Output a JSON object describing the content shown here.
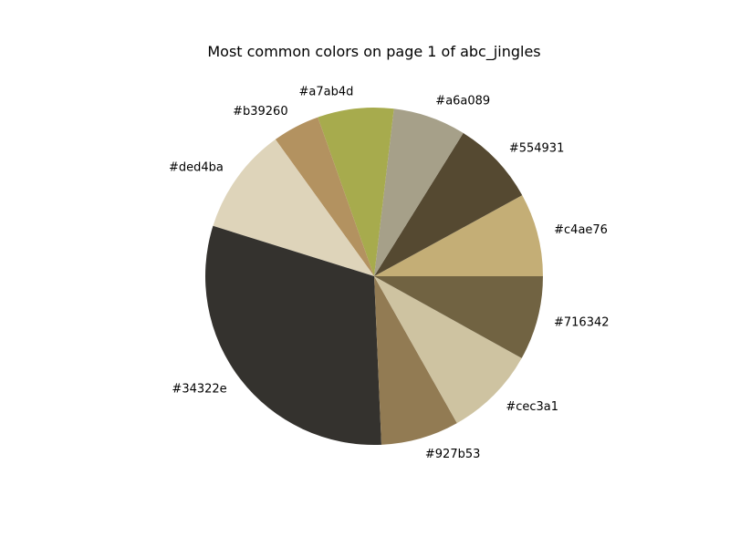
{
  "chart_data": {
    "type": "pie",
    "title": "Most common colors on page 1 of abc_jingles",
    "slices": [
      {
        "label": "#c4ae76",
        "value": 8.1,
        "color": "#c4ae76"
      },
      {
        "label": "#554931",
        "value": 8.3,
        "color": "#554931"
      },
      {
        "label": "#a6a089",
        "value": 7.1,
        "color": "#a6a089"
      },
      {
        "label": "#a7ab4d",
        "value": 7.4,
        "color": "#a7ab4d"
      },
      {
        "label": "#b39260",
        "value": 4.6,
        "color": "#b39260"
      },
      {
        "label": "#ded4ba",
        "value": 10.4,
        "color": "#ded4ba"
      },
      {
        "label": "#34322e",
        "value": 31.0,
        "color": "#34322e"
      },
      {
        "label": "#927b53",
        "value": 7.6,
        "color": "#927b53"
      },
      {
        "label": "#cec3a1",
        "value": 8.9,
        "color": "#cec3a1"
      },
      {
        "label": "#716342",
        "value": 8.2,
        "color": "#716342"
      }
    ],
    "start_angle_deg": 0,
    "direction": "counterclockwise",
    "legend": "none"
  }
}
